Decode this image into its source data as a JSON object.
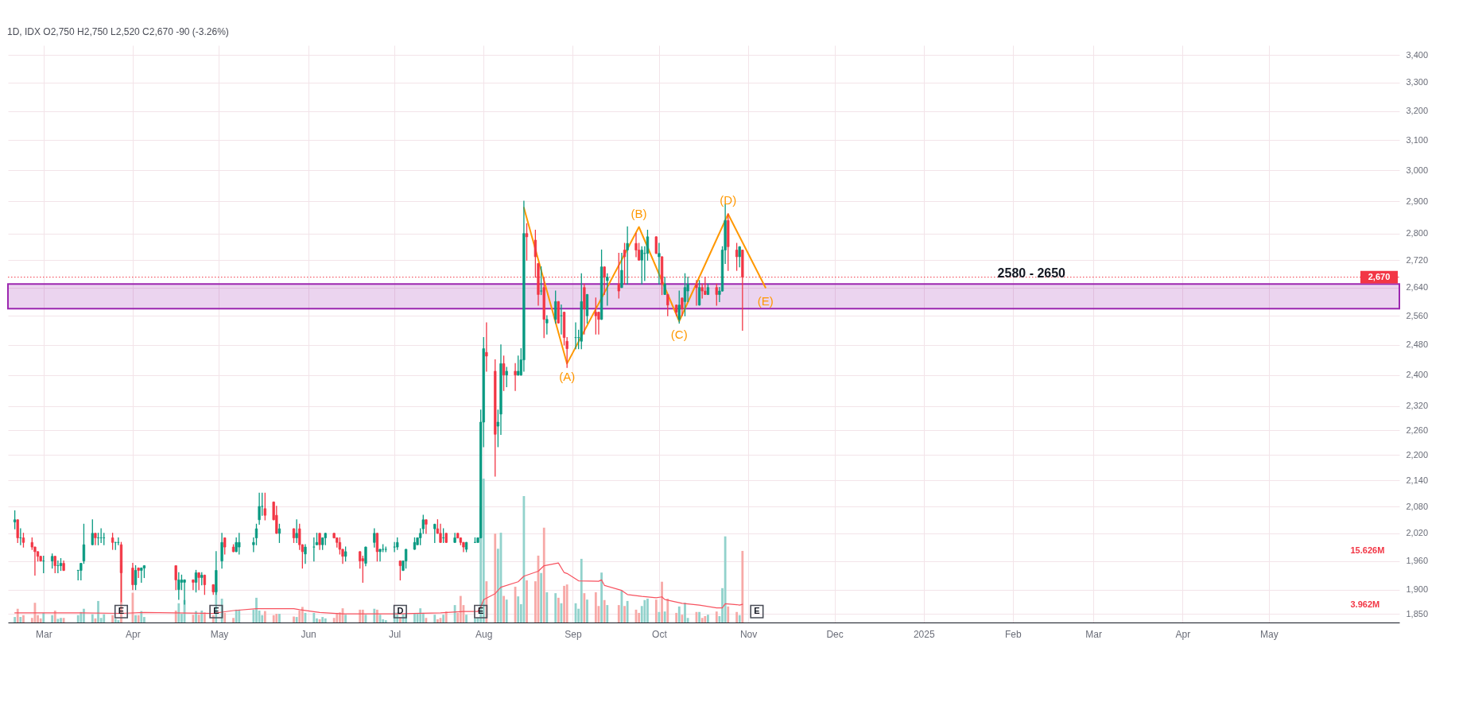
{
  "chart_data": {
    "type": "candlestick",
    "title": "1D, IDX  O2,750 H2,750 L2,520 C2,670 -90 (-3.26%)",
    "x": [
      "2024-02-20",
      "2024-02-21",
      "2024-02-22",
      "2024-02-23",
      "2024-02-26",
      "2024-02-27",
      "2024-02-28",
      "2024-02-29",
      "2024-03-01",
      "2024-03-04",
      "2024-03-05",
      "2024-03-06",
      "2024-03-07",
      "2024-03-08",
      "2024-03-13",
      "2024-03-14",
      "2024-03-15",
      "2024-03-18",
      "2024-03-19",
      "2024-03-20",
      "2024-03-21",
      "2024-03-22",
      "2024-03-25",
      "2024-03-26",
      "2024-03-27",
      "2024-03-28",
      "2024-04-01",
      "2024-04-02",
      "2024-04-03",
      "2024-04-04",
      "2024-04-05",
      "2024-04-16",
      "2024-04-17",
      "2024-04-18",
      "2024-04-19",
      "2024-04-22",
      "2024-04-23",
      "2024-04-24",
      "2024-04-25",
      "2024-04-26",
      "2024-04-29",
      "2024-04-30",
      "2024-05-02",
      "2024-05-03",
      "2024-05-06",
      "2024-05-07",
      "2024-05-08",
      "2024-05-13",
      "2024-05-14",
      "2024-05-15",
      "2024-05-16",
      "2024-05-17",
      "2024-05-20",
      "2024-05-21",
      "2024-05-22",
      "2024-05-27",
      "2024-05-28",
      "2024-05-29",
      "2024-05-30",
      "2024-05-31",
      "2024-06-03",
      "2024-06-04",
      "2024-06-05",
      "2024-06-06",
      "2024-06-07",
      "2024-06-10",
      "2024-06-11",
      "2024-06-12",
      "2024-06-13",
      "2024-06-14",
      "2024-06-19",
      "2024-06-20",
      "2024-06-21",
      "2024-06-24",
      "2024-06-25",
      "2024-06-26",
      "2024-06-27",
      "2024-06-28",
      "2024-07-01",
      "2024-07-02",
      "2024-07-03",
      "2024-07-04",
      "2024-07-05",
      "2024-07-08",
      "2024-07-09",
      "2024-07-10",
      "2024-07-11",
      "2024-07-12",
      "2024-07-15",
      "2024-07-16",
      "2024-07-17",
      "2024-07-18",
      "2024-07-19",
      "2024-07-22",
      "2024-07-23",
      "2024-07-24",
      "2024-07-25",
      "2024-07-26",
      "2024-07-29",
      "2024-07-30",
      "2024-07-31",
      "2024-08-01",
      "2024-08-02",
      "2024-08-05",
      "2024-08-06",
      "2024-08-07",
      "2024-08-08",
      "2024-08-09",
      "2024-08-12",
      "2024-08-13",
      "2024-08-14",
      "2024-08-15",
      "2024-08-16",
      "2024-08-19",
      "2024-08-20",
      "2024-08-21",
      "2024-08-22",
      "2024-08-23",
      "2024-08-26",
      "2024-08-27",
      "2024-08-28",
      "2024-08-29",
      "2024-08-30",
      "2024-09-02",
      "2024-09-03",
      "2024-09-04",
      "2024-09-05",
      "2024-09-06",
      "2024-09-09",
      "2024-09-10",
      "2024-09-11",
      "2024-09-12",
      "2024-09-13",
      "2024-09-17",
      "2024-09-18",
      "2024-09-19",
      "2024-09-20",
      "2024-09-23",
      "2024-09-24",
      "2024-09-25",
      "2024-09-26",
      "2024-09-27",
      "2024-09-30",
      "2024-10-01",
      "2024-10-02",
      "2024-10-03",
      "2024-10-04",
      "2024-10-07",
      "2024-10-08",
      "2024-10-09",
      "2024-10-10",
      "2024-10-11",
      "2024-10-14",
      "2024-10-15",
      "2024-10-16",
      "2024-10-17",
      "2024-10-18",
      "2024-10-21",
      "2024-10-22",
      "2024-10-23",
      "2024-10-24",
      "2024-10-25",
      "2024-10-28",
      "2024-10-29",
      "2024-10-30"
    ],
    "ohlc": [
      [
        2045,
        2070,
        2030,
        2050
      ],
      [
        2050,
        2050,
        2000,
        2010
      ],
      [
        2010,
        2030,
        1995,
        2010
      ],
      [
        2010,
        2020,
        1990,
        2000
      ],
      [
        2000,
        2010,
        1985,
        1990
      ],
      [
        1990,
        1990,
        1930,
        1980
      ],
      [
        1980,
        1980,
        1960,
        1970
      ],
      [
        1970,
        1970,
        1960,
        1960
      ],
      [
        1960,
        1970,
        1935,
        1960
      ],
      [
        1960,
        1975,
        1945,
        1970
      ],
      [
        1970,
        1970,
        1935,
        1950
      ],
      [
        1950,
        1960,
        1935,
        1950
      ],
      [
        1950,
        1965,
        1940,
        1955
      ],
      [
        1955,
        1960,
        1940,
        1940
      ],
      [
        1940,
        1940,
        1920,
        1940
      ],
      [
        1940,
        1955,
        1920,
        1955
      ],
      [
        1960,
        2040,
        1955,
        1995
      ],
      [
        1995,
        2050,
        1995,
        2020
      ],
      [
        2020,
        2020,
        1995,
        2010
      ],
      [
        2010,
        2020,
        1995,
        2010
      ],
      [
        2010,
        2030,
        2000,
        2010
      ],
      [
        2010,
        2020,
        1995,
        2010
      ],
      [
        2010,
        2020,
        1985,
        2000
      ],
      [
        2000,
        2000,
        1985,
        2000
      ],
      [
        2000,
        2010,
        1995,
        2000
      ],
      [
        1995,
        2000,
        1875,
        1935
      ],
      [
        1945,
        1955,
        1900,
        1910
      ],
      [
        1910,
        1950,
        1900,
        1940
      ],
      [
        1945,
        1945,
        1925,
        1940
      ],
      [
        1940,
        1945,
        1915,
        1945
      ],
      [
        1945,
        1950,
        1925,
        1950
      ],
      [
        1950,
        1950,
        1900,
        1920
      ],
      [
        1900,
        1935,
        1880,
        1920
      ],
      [
        1915,
        1930,
        1900,
        1920
      ],
      [
        1915,
        1920,
        1870,
        1920
      ],
      [
        1920,
        1920,
        1900,
        1915
      ],
      [
        1915,
        1940,
        1895,
        1935
      ],
      [
        1935,
        1935,
        1900,
        1925
      ],
      [
        1925,
        1935,
        1910,
        1930
      ],
      [
        1930,
        1930,
        1890,
        1910
      ],
      [
        1910,
        1910,
        1890,
        1895
      ],
      [
        1895,
        1980,
        1890,
        1940
      ],
      [
        1960,
        2020,
        1945,
        2000
      ],
      [
        2010,
        2010,
        1975,
        1990
      ],
      [
        1990,
        1995,
        1980,
        1980
      ],
      [
        1980,
        2010,
        1980,
        2000
      ],
      [
        1990,
        2020,
        1975,
        2000
      ],
      [
        1995,
        2010,
        1980,
        2000
      ],
      [
        2010,
        2040,
        1995,
        2030
      ],
      [
        2050,
        2110,
        2040,
        2080
      ],
      [
        2080,
        2110,
        2060,
        2080
      ],
      [
        2075,
        2110,
        2050,
        2060
      ],
      [
        2090,
        2090,
        2050,
        2050
      ],
      [
        2060,
        2080,
        2020,
        2020
      ],
      [
        2020,
        2040,
        2000,
        2030
      ],
      [
        2030,
        2030,
        2000,
        2010
      ],
      [
        2010,
        2050,
        2000,
        2020
      ],
      [
        2030,
        2040,
        1985,
        1995
      ],
      [
        1995,
        1995,
        1945,
        1980
      ],
      [
        1975,
        1995,
        1955,
        1990
      ],
      [
        1990,
        2010,
        1960,
        1990
      ],
      [
        1995,
        2020,
        1995,
        2000
      ],
      [
        2020,
        2020,
        1985,
        1995
      ],
      [
        1995,
        2010,
        1985,
        2010
      ],
      [
        2010,
        2020,
        1995,
        2020
      ],
      [
        2020,
        2020,
        2010,
        2010
      ],
      [
        2010,
        2010,
        1990,
        2000
      ],
      [
        2000,
        2010,
        1975,
        1985
      ],
      [
        1985,
        1985,
        1955,
        1970
      ],
      [
        1970,
        1990,
        1960,
        1980
      ],
      [
        1980,
        1980,
        1945,
        1960
      ],
      [
        1965,
        1970,
        1915,
        1960
      ],
      [
        1955,
        1990,
        1950,
        1990
      ],
      [
        2000,
        2030,
        1990,
        2020
      ],
      [
        2020,
        2020,
        1960,
        1980
      ],
      [
        1980,
        1985,
        1960,
        1985
      ],
      [
        1985,
        1995,
        1980,
        1985
      ],
      [
        1985,
        1990,
        1980,
        1985
      ],
      [
        1990,
        2000,
        1980,
        1990
      ],
      [
        1990,
        2010,
        1985,
        2000
      ],
      [
        1960,
        1960,
        1920,
        1950
      ],
      [
        1940,
        1960,
        1940,
        1960
      ],
      [
        1960,
        1985,
        1945,
        1985
      ],
      [
        1985,
        2010,
        1985,
        2000
      ],
      [
        1995,
        2010,
        1995,
        2010
      ],
      [
        2010,
        2030,
        1995,
        2020
      ],
      [
        2030,
        2060,
        2020,
        2050
      ],
      [
        2050,
        2050,
        2020,
        2040
      ],
      [
        2030,
        2040,
        2000,
        2040
      ],
      [
        2030,
        2050,
        2020,
        2020
      ],
      [
        2020,
        2040,
        2000,
        2000
      ],
      [
        2010,
        2030,
        2000,
        2010
      ],
      [
        2020,
        2020,
        2000,
        2000
      ],
      [
        2000,
        2020,
        2000,
        2010
      ],
      [
        2020,
        2020,
        2010,
        2010
      ],
      [
        2010,
        2010,
        1995,
        2000
      ],
      [
        2000,
        2000,
        1980,
        1990
      ],
      [
        1985,
        2000,
        1980,
        2000
      ],
      [
        2000,
        2010,
        2000,
        2000
      ],
      [
        2000,
        2010,
        2000,
        2010
      ],
      [
        2010,
        2310,
        2010,
        2280
      ],
      [
        2280,
        2500,
        2220,
        2470
      ],
      [
        2460,
        2540,
        2410,
        2450
      ],
      [
        2410,
        2440,
        2150,
        2250
      ],
      [
        2270,
        2310,
        2220,
        2280
      ],
      [
        2300,
        2480,
        2250,
        2430
      ],
      [
        2430,
        2450,
        2360,
        2400
      ],
      [
        2400,
        2420,
        2370,
        2410
      ],
      [
        2410,
        2430,
        2360,
        2400
      ],
      [
        2400,
        2450,
        2400,
        2410
      ],
      [
        2400,
        2470,
        2400,
        2440
      ],
      [
        2440,
        2900,
        2410,
        2800
      ],
      [
        2800,
        2830,
        2720,
        2790
      ],
      [
        2780,
        2810,
        2670,
        2730
      ],
      [
        2710,
        2710,
        2590,
        2620
      ],
      [
        2630,
        2700,
        2620,
        2630
      ],
      [
        2640,
        2670,
        2500,
        2550
      ],
      [
        2540,
        2560,
        2510,
        2550
      ],
      [
        2550,
        2630,
        2540,
        2600
      ],
      [
        2600,
        2600,
        2540,
        2540
      ],
      [
        2560,
        2590,
        2510,
        2560
      ],
      [
        2570,
        2570,
        2480,
        2500
      ],
      [
        2490,
        2500,
        2420,
        2470
      ],
      [
        2500,
        2540,
        2470,
        2500
      ],
      [
        2500,
        2520,
        2470,
        2500
      ],
      [
        2490,
        2680,
        2470,
        2600
      ],
      [
        2640,
        2650,
        2510,
        2580
      ],
      [
        2560,
        2620,
        2540,
        2620
      ],
      [
        2570,
        2610,
        2510,
        2560
      ],
      [
        2570,
        2570,
        2510,
        2550
      ],
      [
        2550,
        2750,
        2550,
        2700
      ],
      [
        2700,
        2700,
        2620,
        2670
      ],
      [
        2660,
        2680,
        2590,
        2670
      ],
      [
        2650,
        2740,
        2610,
        2630
      ],
      [
        2640,
        2740,
        2640,
        2690
      ],
      [
        2750,
        2770,
        2650,
        2730
      ],
      [
        2750,
        2820,
        2650,
        2770
      ],
      [
        2770,
        2800,
        2730,
        2750
      ],
      [
        2750,
        2770,
        2720,
        2720
      ],
      [
        2720,
        2760,
        2650,
        2750
      ],
      [
        2740,
        2760,
        2660,
        2740
      ],
      [
        2740,
        2810,
        2720,
        2790
      ],
      [
        2790,
        2790,
        2740,
        2740
      ],
      [
        2730,
        2770,
        2650,
        2740
      ],
      [
        2730,
        2730,
        2620,
        2650
      ],
      [
        2620,
        2670,
        2620,
        2650
      ],
      [
        2620,
        2620,
        2560,
        2590
      ],
      [
        2590,
        2590,
        2560,
        2570
      ],
      [
        2550,
        2630,
        2540,
        2590
      ],
      [
        2610,
        2610,
        2560,
        2580
      ],
      [
        2600,
        2680,
        2560,
        2640
      ],
      [
        2630,
        2670,
        2600,
        2650
      ],
      [
        2650,
        2660,
        2590,
        2640
      ],
      [
        2590,
        2660,
        2590,
        2640
      ],
      [
        2640,
        2650,
        2610,
        2630
      ],
      [
        2630,
        2670,
        2620,
        2620
      ],
      [
        2620,
        2650,
        2620,
        2640
      ],
      [
        2640,
        2650,
        2590,
        2620
      ],
      [
        2620,
        2640,
        2600,
        2630
      ],
      [
        2630,
        2760,
        2630,
        2750
      ],
      [
        2750,
        2890,
        2710,
        2840
      ],
      [
        2840,
        2860,
        2690,
        2760
      ],
      [
        2750,
        2770,
        2690,
        2730
      ],
      [
        2730,
        2760,
        2700,
        2760
      ],
      [
        2750,
        2750,
        2520,
        2670
      ]
    ],
    "colors": [
      "#089981",
      "#f23645",
      "#089981",
      "#f23645",
      "#f23645",
      "#f23645",
      "#f23645",
      "#f23645",
      "#089981",
      "#089981",
      "#f23645",
      "#089981",
      "#089981",
      "#f23645",
      "#089981",
      "#089981",
      "#089981",
      "#089981",
      "#f23645",
      "#089981",
      "#089981",
      "#089981",
      "#f23645",
      "#089981",
      "#089981",
      "#f23645",
      "#f23645",
      "#089981",
      "#f23645",
      "#089981",
      "#089981",
      "#f23645",
      "#089981",
      "#089981",
      "#089981",
      "#f23645",
      "#089981",
      "#f23645",
      "#089981",
      "#f23645",
      "#f23645",
      "#089981",
      "#089981",
      "#f23645",
      "#f23645",
      "#089981",
      "#089981",
      "#089981",
      "#089981",
      "#089981",
      "#089981",
      "#f23645",
      "#f23645",
      "#f23645",
      "#089981",
      "#f23645",
      "#089981",
      "#f23645",
      "#f23645",
      "#089981",
      "#089981",
      "#089981",
      "#f23645",
      "#089981",
      "#089981",
      "#f23645",
      "#f23645",
      "#f23645",
      "#f23645",
      "#089981",
      "#f23645",
      "#f23645",
      "#089981",
      "#089981",
      "#f23645",
      "#089981",
      "#089981",
      "#089981",
      "#089981",
      "#089981",
      "#f23645",
      "#089981",
      "#089981",
      "#089981",
      "#089981",
      "#089981",
      "#089981",
      "#f23645",
      "#089981",
      "#f23645",
      "#f23645",
      "#089981",
      "#f23645",
      "#089981",
      "#f23645",
      "#f23645",
      "#f23645",
      "#089981",
      "#089981",
      "#089981",
      "#089981",
      "#089981",
      "#f23645",
      "#f23645",
      "#089981",
      "#089981",
      "#f23645",
      "#089981",
      "#f23645",
      "#089981",
      "#089981",
      "#089981",
      "#f23645",
      "#f23645",
      "#f23645",
      "#089981",
      "#f23645",
      "#089981",
      "#089981",
      "#f23645",
      "#089981",
      "#f23645",
      "#f23645",
      "#089981",
      "#089981",
      "#089981",
      "#f23645",
      "#089981",
      "#f23645",
      "#f23645",
      "#089981",
      "#f23645",
      "#089981",
      "#f23645",
      "#089981",
      "#f23645",
      "#089981",
      "#f23645",
      "#f23645",
      "#089981",
      "#089981",
      "#089981",
      "#f23645",
      "#089981",
      "#f23645",
      "#089981",
      "#f23645",
      "#f23645",
      "#089981",
      "#f23645",
      "#089981",
      "#089981",
      "#f23645",
      "#089981",
      "#f23645",
      "#f23645",
      "#089981",
      "#f23645",
      "#089981",
      "#089981",
      "#089981",
      "#f23645",
      "#f23645",
      "#089981",
      "#f23645"
    ],
    "series": [
      {
        "type": "bar",
        "axis": "y2",
        "values": [
          1.2,
          3.0,
          1.2,
          1.6,
          1.0,
          4.3,
          1.6,
          0.9,
          2.1,
          1.6,
          2.6,
          0.8,
          1.0,
          1.0,
          1.6,
          2.3,
          3.0,
          1.8,
          0.9,
          4.7,
          1.0,
          1.8,
          1.6,
          0.8,
          0.5,
          12.5,
          6.5,
          1.6,
          1.6,
          2.5,
          1.2,
          2.6,
          4.2,
          1.9,
          4.9,
          1.7,
          2.5,
          1.7,
          2.6,
          2.2,
          1.6,
          7.6,
          5.2,
          2.1,
          1.0,
          2.8,
          2.8,
          2.8,
          5.4,
          2.6,
          1.6,
          2.5,
          1.6,
          1.9,
          1.9,
          1.3,
          1.2,
          2.6,
          3.4,
          2.1,
          2.1,
          0.9,
          0.7,
          1.2,
          0.9,
          1.0,
          2.1,
          2.2,
          3.1,
          1.7,
          2.8,
          2.8,
          1.7,
          3.0,
          2.8,
          1.7,
          0.7,
          0.5,
          2.2,
          2.2,
          1.2,
          1.9,
          1.9,
          2.1,
          1.9,
          3.1,
          2.1,
          1.0,
          1.7,
          0.7,
          1.0,
          1.7,
          2.4,
          3.8,
          2.1,
          5.8,
          3.8,
          1.7,
          0.9,
          1.0,
          25.1,
          31.4,
          9.0,
          19.4,
          16.1,
          19.6,
          5.8,
          5.0,
          7.8,
          5.7,
          4.0,
          27.6,
          9.2,
          9.0,
          14.6,
          10.8,
          20.7,
          6.6,
          6.4,
          5.4,
          4.2,
          8.0,
          8.3,
          4.2,
          3.0,
          13.9,
          6.4,
          5.0,
          6.6,
          3.6,
          10.9,
          4.9,
          3.8,
          3.8,
          7.0,
          3.6,
          4.7,
          2.8,
          2.1,
          3.6,
          4.9,
          5.2,
          5.0,
          2.3,
          8.9,
          2.4,
          5.2,
          2.1,
          3.5,
          1.7,
          4.3,
          1.0,
          2.3,
          2.3,
          1.0,
          1.4,
          1.7,
          2.4,
          1.4,
          7.5,
          18.8,
          3.5,
          2.3,
          1.6,
          15.626
        ],
        "colors": [
          "#92d2cc",
          "#f7a9a7",
          "#92d2cc",
          "#f7a9a7",
          "#f7a9a7",
          "#f7a9a7",
          "#f7a9a7",
          "#f7a9a7",
          "#92d2cc",
          "#92d2cc",
          "#f7a9a7",
          "#92d2cc",
          "#92d2cc",
          "#f7a9a7",
          "#92d2cc",
          "#92d2cc",
          "#92d2cc",
          "#92d2cc",
          "#f7a9a7",
          "#92d2cc",
          "#92d2cc",
          "#92d2cc",
          "#f7a9a7",
          "#92d2cc",
          "#92d2cc",
          "#f7a9a7",
          "#f7a9a7",
          "#92d2cc",
          "#f7a9a7",
          "#92d2cc",
          "#92d2cc",
          "#f7a9a7",
          "#92d2cc",
          "#92d2cc",
          "#92d2cc",
          "#f7a9a7",
          "#92d2cc",
          "#f7a9a7",
          "#92d2cc",
          "#f7a9a7",
          "#f7a9a7",
          "#92d2cc",
          "#92d2cc",
          "#f7a9a7",
          "#f7a9a7",
          "#92d2cc",
          "#92d2cc",
          "#92d2cc",
          "#92d2cc",
          "#92d2cc",
          "#92d2cc",
          "#f7a9a7",
          "#f7a9a7",
          "#f7a9a7",
          "#92d2cc",
          "#f7a9a7",
          "#92d2cc",
          "#f7a9a7",
          "#f7a9a7",
          "#92d2cc",
          "#92d2cc",
          "#92d2cc",
          "#f7a9a7",
          "#92d2cc",
          "#92d2cc",
          "#f7a9a7",
          "#f7a9a7",
          "#f7a9a7",
          "#f7a9a7",
          "#92d2cc",
          "#f7a9a7",
          "#f7a9a7",
          "#92d2cc",
          "#92d2cc",
          "#f7a9a7",
          "#92d2cc",
          "#92d2cc",
          "#92d2cc",
          "#92d2cc",
          "#92d2cc",
          "#f7a9a7",
          "#92d2cc",
          "#92d2cc",
          "#92d2cc",
          "#92d2cc",
          "#92d2cc",
          "#92d2cc",
          "#f7a9a7",
          "#92d2cc",
          "#f7a9a7",
          "#f7a9a7",
          "#92d2cc",
          "#f7a9a7",
          "#92d2cc",
          "#f7a9a7",
          "#f7a9a7",
          "#f7a9a7",
          "#92d2cc",
          "#92d2cc",
          "#92d2cc",
          "#92d2cc",
          "#92d2cc",
          "#f7a9a7",
          "#f7a9a7",
          "#92d2cc",
          "#92d2cc",
          "#f7a9a7",
          "#92d2cc",
          "#f7a9a7",
          "#92d2cc",
          "#92d2cc",
          "#92d2cc",
          "#f7a9a7",
          "#f7a9a7",
          "#f7a9a7",
          "#92d2cc",
          "#f7a9a7",
          "#92d2cc",
          "#92d2cc",
          "#f7a9a7",
          "#92d2cc",
          "#f7a9a7",
          "#f7a9a7",
          "#92d2cc",
          "#92d2cc",
          "#92d2cc",
          "#f7a9a7",
          "#92d2cc",
          "#f7a9a7",
          "#f7a9a7",
          "#92d2cc",
          "#f7a9a7",
          "#92d2cc",
          "#f7a9a7",
          "#92d2cc",
          "#f7a9a7",
          "#92d2cc",
          "#f7a9a7",
          "#f7a9a7",
          "#92d2cc",
          "#92d2cc",
          "#92d2cc",
          "#f7a9a7",
          "#92d2cc",
          "#f7a9a7",
          "#92d2cc",
          "#f7a9a7",
          "#f7a9a7",
          "#92d2cc",
          "#f7a9a7",
          "#92d2cc",
          "#92d2cc",
          "#f7a9a7",
          "#92d2cc",
          "#f7a9a7",
          "#f7a9a7",
          "#92d2cc",
          "#f7a9a7",
          "#92d2cc",
          "#92d2cc",
          "#92d2cc",
          "#f7a9a7",
          "#f7a9a7",
          "#92d2cc",
          "#f7a9a7"
        ]
      },
      {
        "type": "line",
        "axis": "y2",
        "color": "#f7525f",
        "x": [
          "2024-02-20",
          "2024-03-14",
          "2024-03-28",
          "2024-04-05",
          "2024-04-29",
          "2024-05-06",
          "2024-05-14",
          "2024-05-27",
          "2024-05-29",
          "2024-06-05",
          "2024-06-13",
          "2024-07-03",
          "2024-07-17",
          "2024-07-25",
          "2024-07-30",
          "2024-07-31",
          "2024-08-01",
          "2024-08-05",
          "2024-08-07",
          "2024-08-13",
          "2024-08-15",
          "2024-08-20",
          "2024-08-22",
          "2024-08-27",
          "2024-08-29",
          "2024-08-30",
          "2024-09-03",
          "2024-09-10",
          "2024-09-11",
          "2024-09-12",
          "2024-09-18",
          "2024-09-20",
          "2024-09-25",
          "2024-09-30",
          "2024-10-02",
          "2024-10-03",
          "2024-10-09",
          "2024-10-15",
          "2024-10-21",
          "2024-10-23",
          "2024-10-24",
          "2024-10-28",
          "2024-10-29",
          "2024-10-30"
        ],
        "values": [
          2.1,
          2.1,
          2.0,
          2.2,
          2.0,
          2.6,
          3.0,
          3.0,
          2.8,
          2.2,
          1.9,
          1.9,
          2.1,
          2.4,
          2.4,
          3.4,
          5.0,
          6.3,
          7.7,
          8.9,
          10.1,
          11.2,
          12.4,
          13.0,
          10.9,
          10.7,
          9.1,
          9.0,
          9.3,
          8.1,
          7.0,
          6.1,
          5.7,
          5.4,
          5.6,
          5.0,
          4.2,
          3.8,
          3.2,
          3.2,
          4.1,
          3.9,
          3.8,
          3.962
        ]
      },
      {
        "type": "line",
        "color": "#ff9800",
        "x": [
          "2024-08-15",
          "2024-08-30",
          "2024-09-24",
          "2024-10-08",
          "2024-10-25",
          "2024-11-07"
        ],
        "values": [
          2880,
          2430,
          2820,
          2545,
          2860,
          2640
        ],
        "value_labels": [
          null,
          "(A)",
          "(B)",
          "(C)",
          "(D)",
          "(E)"
        ]
      }
    ],
    "xlim": [
      "2024-02-19",
      "2025-06-14"
    ],
    "xticks": [
      {
        "value": "2024-03-01",
        "label": "Mar"
      },
      {
        "value": "2024-04-01",
        "label": "Apr"
      },
      {
        "value": "2024-05-01",
        "label": "May"
      },
      {
        "value": "2024-06-01",
        "label": "Jun"
      },
      {
        "value": "2024-07-01",
        "label": "Jul"
      },
      {
        "value": "2024-08-01",
        "label": "Aug"
      },
      {
        "value": "2024-09-01",
        "label": "Sep"
      },
      {
        "value": "2024-10-01",
        "label": "Oct"
      },
      {
        "value": "2024-11-01",
        "label": "Nov"
      },
      {
        "value": "2024-12-01",
        "label": "Dec"
      },
      {
        "value": "2025-01-01",
        "label": "2025"
      },
      {
        "value": "2025-02-01",
        "label": "Feb"
      },
      {
        "value": "2025-03-01",
        "label": "Mar"
      },
      {
        "value": "2025-04-01",
        "label": "Apr"
      },
      {
        "value": "2025-05-01",
        "label": "May"
      }
    ],
    "ylim": [
      1833,
      3437
    ],
    "yticks": [
      {
        "value": 1850,
        "label": "1,850"
      },
      {
        "value": 1900,
        "label": "1,900"
      },
      {
        "value": 1960,
        "label": "1,960"
      },
      {
        "value": 2020,
        "label": "2,020"
      },
      {
        "value": 2080,
        "label": "2,080"
      },
      {
        "value": 2140,
        "label": "2,140"
      },
      {
        "value": 2200,
        "label": "2,200"
      },
      {
        "value": 2260,
        "label": "2,260"
      },
      {
        "value": 2320,
        "label": "2,320"
      },
      {
        "value": 2400,
        "label": "2,400"
      },
      {
        "value": 2480,
        "label": "2,480"
      },
      {
        "value": 2560,
        "label": "2,560"
      },
      {
        "value": 2640,
        "label": "2,640"
      },
      {
        "value": 2720,
        "label": "2,720"
      },
      {
        "value": 2800,
        "label": "2,800"
      },
      {
        "value": 2900,
        "label": "2,900"
      },
      {
        "value": 3000,
        "label": "3,000"
      },
      {
        "value": 3100,
        "label": "3,100"
      },
      {
        "value": 3200,
        "label": "3,200"
      },
      {
        "value": 3300,
        "label": "3,300"
      },
      {
        "value": 3400,
        "label": "3,400"
      }
    ],
    "log": "y",
    "y2lim": [
      0,
      126
    ],
    "y2ticks": [
      {
        "value": 15.626,
        "label": "15.626M"
      },
      {
        "value": 3.962,
        "label": "3.962M"
      }
    ],
    "grid": true,
    "ref_lines": [
      {
        "axis": "y",
        "value": 2670,
        "label": "2,670",
        "color": "#f23645",
        "line_style": "dotted"
      }
    ],
    "bands": [
      {
        "axis": "y",
        "from": 2580,
        "to": 2650,
        "label": "2580 - 2650",
        "color": "#9c27b0"
      }
    ],
    "annotations": [
      {
        "text": "E",
        "x": "2024-03-28",
        "y": 1855
      },
      {
        "text": "E",
        "x": "2024-04-30",
        "y": 1855
      },
      {
        "text": "D",
        "x": "2024-07-03",
        "y": 1855
      },
      {
        "text": "E",
        "x": "2024-07-31",
        "y": 1855
      },
      {
        "text": "E",
        "x": "2024-11-04",
        "y": 1855
      }
    ]
  }
}
